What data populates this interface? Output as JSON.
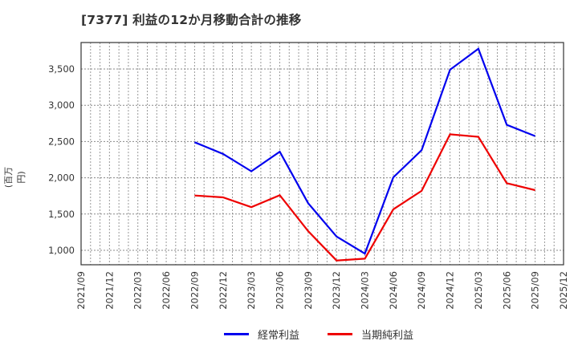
{
  "title": "[7377]  利益の12か月移動合計の推移",
  "y_axis_label": "(百万円)",
  "colors": {
    "series_1": "#0000ee",
    "series_2": "#ee0000",
    "grid": "#999999",
    "axis": "#333333"
  },
  "legend": [
    {
      "label": "経常利益",
      "color": "#0000ee"
    },
    {
      "label": "当期純利益",
      "color": "#ee0000"
    }
  ],
  "chart_data": {
    "type": "line",
    "title": "[7377]  利益の12か月移動合計の推移",
    "xlabel": "",
    "ylabel": "(百万円)",
    "ylim": [
      800,
      3865
    ],
    "yticks": [
      1000,
      1500,
      2000,
      2500,
      3000,
      3500
    ],
    "ytick_labels": [
      "1,000",
      "1,500",
      "2,000",
      "2,500",
      "3,000",
      "3,500"
    ],
    "xtick_labels": [
      "2021/09",
      "2021/12",
      "2022/03",
      "2022/06",
      "2022/09",
      "2022/12",
      "2023/03",
      "2023/06",
      "2023/09",
      "2023/12",
      "2024/03",
      "2024/06",
      "2024/09",
      "2024/12",
      "2025/03",
      "2025/06",
      "2025/09",
      "2025/12"
    ],
    "grid": true,
    "legend_position": "bottom",
    "x": [
      "2022/09",
      "2022/12",
      "2023/03",
      "2023/06",
      "2023/09",
      "2023/12",
      "2024/03",
      "2024/06",
      "2024/09",
      "2024/12",
      "2025/03",
      "2025/06",
      "2025/09"
    ],
    "series": [
      {
        "name": "経常利益",
        "color": "#0000ee",
        "values": [
          2490,
          2330,
          2090,
          2360,
          1650,
          1190,
          955,
          2005,
          2380,
          3490,
          3780,
          2730,
          2575
        ]
      },
      {
        "name": "当期純利益",
        "color": "#ee0000",
        "values": [
          1755,
          1730,
          1595,
          1760,
          1265,
          860,
          885,
          1565,
          1820,
          2600,
          2565,
          1925,
          1830
        ]
      }
    ]
  }
}
